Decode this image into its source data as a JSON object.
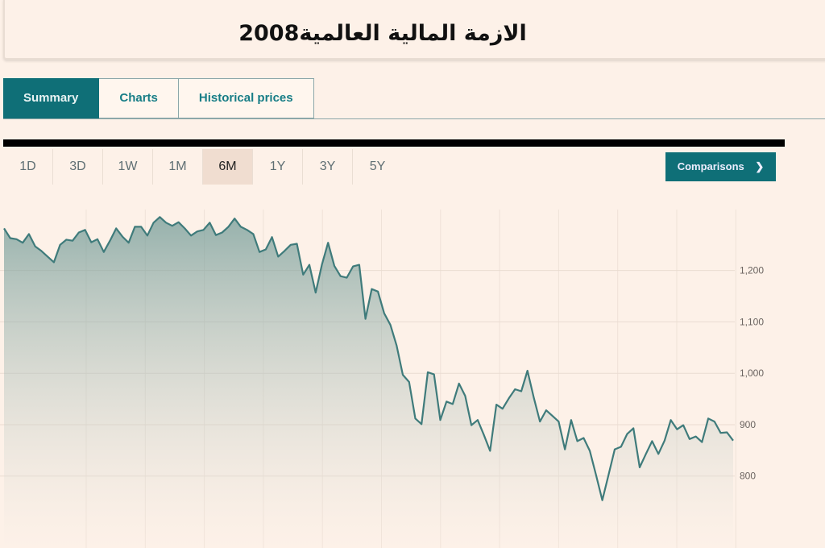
{
  "title": "الازمة المالية العالمية2008",
  "tabs": [
    {
      "label": "Summary",
      "active": true
    },
    {
      "label": "Charts",
      "active": false
    },
    {
      "label": "Historical prices",
      "active": false
    }
  ],
  "ranges": [
    {
      "label": "1D"
    },
    {
      "label": "3D"
    },
    {
      "label": "1W"
    },
    {
      "label": "1M"
    },
    {
      "label": "6M",
      "active": true
    },
    {
      "label": "1Y"
    },
    {
      "label": "3Y"
    },
    {
      "label": "5Y"
    }
  ],
  "comparisons_label": "Comparisons",
  "comparisons_icon": "chevron-right-icon",
  "colors": {
    "accent": "#0f6f77",
    "line": "#3f7b7b",
    "background": "#fdf1e8"
  },
  "chart_data": {
    "type": "area",
    "title": "",
    "xlabel": "",
    "ylabel": "",
    "ylim": [
      660,
      1350
    ],
    "yticks": [
      800,
      900,
      1000,
      1100,
      1200
    ],
    "ytick_labels": [
      "800",
      "900",
      "1,000",
      "1,100",
      "1,200"
    ],
    "grid": true,
    "values": [
      1282,
      1263,
      1261,
      1254,
      1271,
      1247,
      1238,
      1227,
      1216,
      1250,
      1260,
      1258,
      1274,
      1279,
      1255,
      1261,
      1236,
      1258,
      1282,
      1266,
      1254,
      1285,
      1285,
      1268,
      1293,
      1304,
      1293,
      1287,
      1294,
      1282,
      1268,
      1276,
      1279,
      1293,
      1269,
      1274,
      1285,
      1301,
      1285,
      1279,
      1271,
      1236,
      1241,
      1265,
      1227,
      1238,
      1250,
      1252,
      1192,
      1211,
      1157,
      1211,
      1254,
      1209,
      1189,
      1186,
      1208,
      1211,
      1106,
      1164,
      1159,
      1117,
      1094,
      1054,
      997,
      983,
      912,
      901,
      1002,
      998,
      909,
      945,
      940,
      980,
      956,
      899,
      909,
      880,
      849,
      939,
      931,
      951,
      969,
      965,
      1005,
      953,
      906,
      928,
      917,
      906,
      852,
      909,
      868,
      874,
      849,
      802,
      753,
      802,
      852,
      857,
      882,
      893,
      817,
      843,
      868,
      843,
      869,
      909,
      891,
      899,
      872,
      877,
      866,
      912,
      906,
      884,
      885,
      869
    ]
  }
}
